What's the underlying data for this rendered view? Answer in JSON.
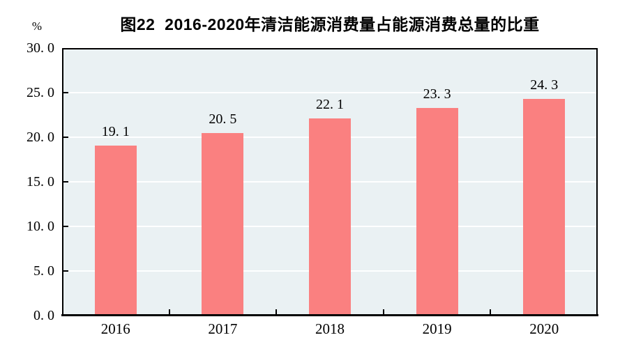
{
  "chart_data": {
    "type": "bar",
    "title": "图22  2016-2020年清洁能源消费量占能源消费总量的比重",
    "unit_label": "%",
    "categories": [
      "2016",
      "2017",
      "2018",
      "2019",
      "2020"
    ],
    "values": [
      19.1,
      20.5,
      22.1,
      23.3,
      24.3
    ],
    "value_labels": [
      "19. 1",
      "20. 5",
      "22. 1",
      "23. 3",
      "24. 3"
    ],
    "xlabel": "",
    "ylabel": "%",
    "ylim": [
      0,
      30
    ],
    "y_tick_step": 5,
    "y_ticks": [
      0,
      5,
      10,
      15,
      20,
      25,
      30
    ],
    "y_tick_labels": [
      "0. 0",
      "5. 0",
      "10. 0",
      "15. 0",
      "20. 0",
      "25. 0",
      "30. 0"
    ],
    "grid": "horizontal white gridlines at each 5-unit level",
    "legend_position": "none",
    "bar_color": "#FA8080",
    "plot_bg_color": "#EAF1F3",
    "axis_color": "#000000",
    "gridline_color": "#FFFFFF",
    "text_color": "#000000"
  }
}
